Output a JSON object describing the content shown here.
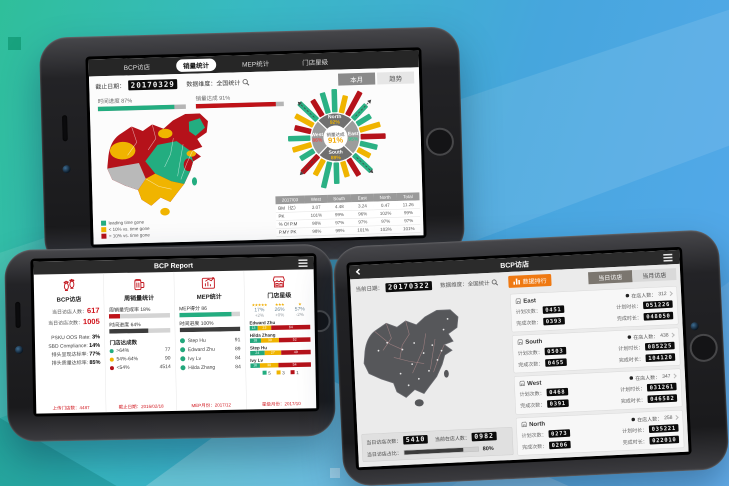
{
  "colors": {
    "green": "#23ad80",
    "yellow": "#f0b400",
    "red": "#b5121a",
    "orange": "#ef7912",
    "accent_red": "#d0121a"
  },
  "phone_top": {
    "nav_tabs": [
      {
        "label": "BCP访店",
        "active": false
      },
      {
        "label": "销量统计",
        "active": true
      },
      {
        "label": "MEP统计",
        "active": false
      },
      {
        "label": "门店星级",
        "active": false
      }
    ],
    "date_label": "截止日期：",
    "date_value": "20170329",
    "dimension_label": "数据维度：全国统计",
    "btn_month": "本月",
    "btn_trend": "趋势",
    "progress_time": {
      "label": "时间进度 87%",
      "pct": 87
    },
    "progress_sales": {
      "label": "销量达成 91%",
      "pct": 91
    },
    "legend": [
      {
        "color": "#23ad80",
        "label": "leading time gone"
      },
      {
        "color": "#f0b400",
        "label": "< 10% vs. time gone"
      },
      {
        "color": "#b5121a",
        "label": "> 10% vs. time gone"
      }
    ],
    "radial": {
      "center_title": "销量达成",
      "center_value": "91%",
      "quadrants": [
        {
          "name": "North",
          "value": "92%",
          "color": "#f0b400"
        },
        {
          "name": "East",
          "value": "95%",
          "color": "#35c68f"
        },
        {
          "name": "South",
          "value": "89%",
          "color": "#f0b400"
        },
        {
          "name": "West",
          "value": "86%",
          "color": "#e65050"
        }
      ],
      "spokes": [
        {
          "c": "g",
          "l": 26
        },
        {
          "c": "y",
          "l": 20
        },
        {
          "c": "r",
          "l": 30
        },
        {
          "c": "g",
          "l": 22
        },
        {
          "c": "g",
          "l": 18
        },
        {
          "c": "y",
          "l": 24
        },
        {
          "c": "r",
          "l": 28
        },
        {
          "c": "g",
          "l": 20
        },
        {
          "c": "y",
          "l": 16
        },
        {
          "c": "g",
          "l": 27
        },
        {
          "c": "r",
          "l": 22
        },
        {
          "c": "y",
          "l": 18
        },
        {
          "c": "g",
          "l": 24
        },
        {
          "c": "g",
          "l": 30
        },
        {
          "c": "y",
          "l": 20
        },
        {
          "c": "r",
          "l": 26
        },
        {
          "c": "g",
          "l": 18
        },
        {
          "c": "y",
          "l": 22
        },
        {
          "c": "g",
          "l": 25
        },
        {
          "c": "r",
          "l": 19
        },
        {
          "c": "y",
          "l": 23
        },
        {
          "c": "g",
          "l": 28
        },
        {
          "c": "r",
          "l": 21
        },
        {
          "c": "g",
          "l": 24
        }
      ]
    },
    "table": {
      "head": [
        "2017/03",
        "West",
        "South",
        "East",
        "North",
        "Total"
      ],
      "rows": [
        [
          "BM（亿）",
          "3.07",
          "4.48",
          "3.24",
          "0.47",
          "11.26"
        ],
        [
          "PK",
          "101%",
          "99%",
          "96%",
          "102%",
          "99%"
        ],
        [
          "% Of P.M",
          "98%",
          "97%",
          "97%",
          "97%",
          "97%"
        ],
        [
          "P.MY PK",
          "98%",
          "99%",
          "101%",
          "103%",
          "101%"
        ]
      ]
    }
  },
  "phone_left": {
    "title": "BCP Report",
    "col1": {
      "title": "BCP访店",
      "visitors_label": "当日访店人数：",
      "visitors": "617",
      "visits_label": "当日访店次数：",
      "visits": "1005",
      "metrics": [
        {
          "label": "PSKU OOS Rate:",
          "value": "3%"
        },
        {
          "label": "SBD Compliance:",
          "value": "14%"
        },
        {
          "label": "排头呈现达标率:",
          "value": "77%"
        },
        {
          "label": "排头质量达标率:",
          "value": "85%"
        }
      ],
      "footer": "上传门店数：4487"
    },
    "col2": {
      "title": "周销量统计",
      "bar1": {
        "label": "周销量完成率 18%",
        "pct": 18
      },
      "bar2": {
        "label": "时间进度 64%",
        "pct": 64
      },
      "subtitle": "门店达成数",
      "dots": [
        {
          "color": "#23ad80",
          "label": ">64%",
          "value": "77"
        },
        {
          "color": "#f0b400",
          "label": "54%-64%",
          "value": "90"
        },
        {
          "color": "#b5121a",
          "label": "<54%",
          "value": "4514"
        }
      ],
      "footer": "截止日期：2016/02/18"
    },
    "col3": {
      "title": "MEP统计",
      "bar1": {
        "label": "MEP得分 86",
        "pct": 86
      },
      "bar2": {
        "label": "时间进度 100%",
        "pct": 100
      },
      "people": [
        {
          "name": "Step Hu",
          "score": "91"
        },
        {
          "name": "Edward Zhu",
          "score": "89"
        },
        {
          "name": "Ivy Lv",
          "score": "84"
        },
        {
          "name": "Hilda Zhang",
          "score": "84"
        }
      ],
      "footer": "MEP月份：2017/12"
    },
    "col4": {
      "title": "门店星级",
      "summary": [
        {
          "stars": "★★★★★",
          "pct": "17%",
          "chg": "+2%"
        },
        {
          "stars": "★★★",
          "pct": "26%",
          "chg": "+0%"
        },
        {
          "stars": "★",
          "pct": "57%",
          "chg": "-2%"
        }
      ],
      "rows": [
        {
          "name": "Edward Zhu",
          "seg": [
            13,
            23,
            64
          ]
        },
        {
          "name": "Hilda Zhang",
          "seg": [
            18,
            30,
            52
          ]
        },
        {
          "name": "Step Hu",
          "seg": [
            24,
            27,
            49
          ]
        },
        {
          "name": "Ivy Lv",
          "seg": [
            16,
            30,
            54
          ]
        }
      ],
      "legend": [
        {
          "color": "#23ad80",
          "label": "5"
        },
        {
          "color": "#f0b400",
          "label": "3"
        },
        {
          "color": "#b5121a",
          "label": "1"
        }
      ],
      "footer": "星级月份：2017/10"
    }
  },
  "phone_right": {
    "title": "BCP访店",
    "date_label": "当前日期：",
    "date_value": "20170322",
    "dimension_label": "数据维度：全国统计",
    "rank_button": "数据排行",
    "toggle": [
      {
        "label": "当日访店",
        "active": true
      },
      {
        "label": "当月访店",
        "active": false
      }
    ],
    "labels": {
      "plan_count": "计划次数：",
      "done_count": "完成次数：",
      "plan_time": "计划时长：",
      "done_time": "完成时长：",
      "people": "在店人数："
    },
    "regions": [
      {
        "name": "East",
        "people": "312",
        "plan_count": "0451",
        "done_count": "0393",
        "plan_time": "051226",
        "done_time": "048050"
      },
      {
        "name": "South",
        "people": "438",
        "plan_count": "0503",
        "done_count": "0455",
        "plan_time": "085225",
        "done_time": "104120"
      },
      {
        "name": "West",
        "people": "347",
        "plan_count": "0468",
        "done_count": "0391",
        "plan_time": "031261",
        "done_time": "046582"
      },
      {
        "name": "North",
        "people": "258",
        "plan_count": "0273",
        "done_count": "0206",
        "plan_time": "035221",
        "done_time": "022010"
      }
    ],
    "bottom": {
      "visits_label": "当日访店次数：",
      "visits": "5410",
      "people_label": "当前在店人数：",
      "people": "0982",
      "ratio_label": "当日访店占比：",
      "ratio": "80%",
      "ratio_pct": 80
    }
  }
}
